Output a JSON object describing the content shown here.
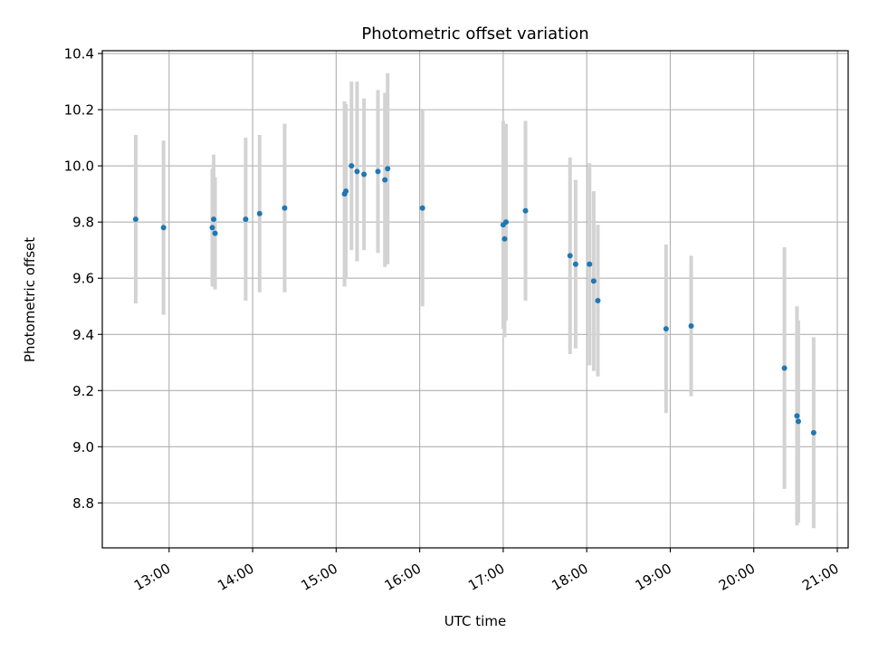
{
  "chart_data": {
    "type": "scatter",
    "title": "Photometric offset variation",
    "xlabel": "UTC time",
    "ylabel": "Photometric offset",
    "x_tick_labels": [
      "13:00",
      "14:00",
      "15:00",
      "16:00",
      "17:00",
      "18:00",
      "19:00",
      "20:00",
      "21:00"
    ],
    "x_ticks_hours": [
      13,
      14,
      15,
      16,
      17,
      18,
      19,
      20,
      21
    ],
    "xlim_hours": [
      12.2,
      21.13
    ],
    "y_ticks": [
      8.8,
      9.0,
      9.2,
      9.4,
      9.6,
      9.8,
      10.0,
      10.2,
      10.4
    ],
    "ylim": [
      8.64,
      10.41
    ],
    "grid": true,
    "colors": {
      "points": "#1f77b4",
      "errorbars": "#d3d3d3",
      "grid": "#b0b0b0"
    },
    "points": [
      {
        "x": "12:36",
        "y": 9.81,
        "yerr": 0.3
      },
      {
        "x": "12:56",
        "y": 9.78,
        "yerr": 0.31
      },
      {
        "x": "13:31",
        "y": 9.78,
        "yerr": 0.21
      },
      {
        "x": "13:32",
        "y": 9.81,
        "yerr": 0.23
      },
      {
        "x": "13:33",
        "y": 9.76,
        "yerr": 0.2
      },
      {
        "x": "13:55",
        "y": 9.81,
        "yerr": 0.29
      },
      {
        "x": "14:05",
        "y": 9.83,
        "yerr": 0.28
      },
      {
        "x": "14:23",
        "y": 9.85,
        "yerr": 0.3
      },
      {
        "x": "15:06",
        "y": 9.9,
        "yerr": 0.33
      },
      {
        "x": "15:07",
        "y": 9.91,
        "yerr": 0.31
      },
      {
        "x": "15:11",
        "y": 10.0,
        "yerr": 0.3
      },
      {
        "x": "15:15",
        "y": 9.98,
        "yerr": 0.32
      },
      {
        "x": "15:20",
        "y": 9.97,
        "yerr": 0.27
      },
      {
        "x": "15:30",
        "y": 9.98,
        "yerr": 0.29
      },
      {
        "x": "15:35",
        "y": 9.95,
        "yerr": 0.31
      },
      {
        "x": "15:37",
        "y": 9.99,
        "yerr": 0.34
      },
      {
        "x": "16:02",
        "y": 9.85,
        "yerr": 0.35
      },
      {
        "x": "17:00",
        "y": 9.79,
        "yerr": 0.37
      },
      {
        "x": "17:01",
        "y": 9.74,
        "yerr": 0.35
      },
      {
        "x": "17:02",
        "y": 9.8,
        "yerr": 0.35
      },
      {
        "x": "17:16",
        "y": 9.84,
        "yerr": 0.32
      },
      {
        "x": "17:48",
        "y": 9.68,
        "yerr": 0.35
      },
      {
        "x": "17:52",
        "y": 9.65,
        "yerr": 0.3
      },
      {
        "x": "18:02",
        "y": 9.65,
        "yerr": 0.36
      },
      {
        "x": "18:05",
        "y": 9.59,
        "yerr": 0.32
      },
      {
        "x": "18:08",
        "y": 9.52,
        "yerr": 0.27
      },
      {
        "x": "18:57",
        "y": 9.42,
        "yerr": 0.3
      },
      {
        "x": "19:15",
        "y": 9.43,
        "yerr": 0.25
      },
      {
        "x": "20:22",
        "y": 9.28,
        "yerr": 0.43
      },
      {
        "x": "20:31",
        "y": 9.11,
        "yerr": 0.39
      },
      {
        "x": "20:32",
        "y": 9.09,
        "yerr": 0.36
      },
      {
        "x": "20:43",
        "y": 9.05,
        "yerr": 0.34
      }
    ]
  }
}
